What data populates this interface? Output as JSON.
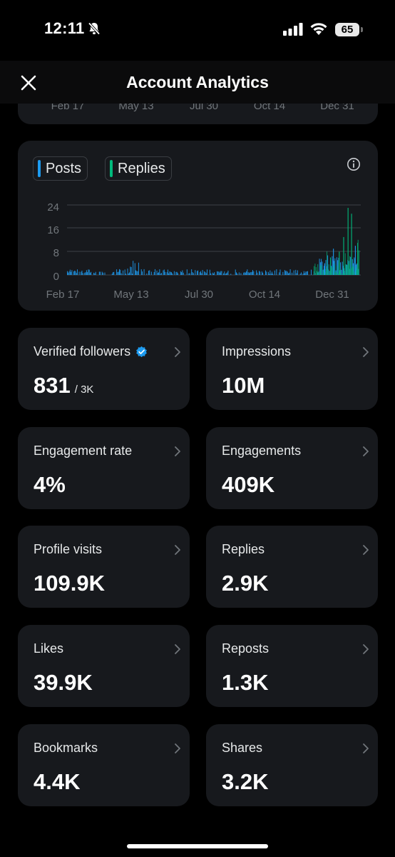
{
  "status_bar": {
    "time": "12:11",
    "battery": "65",
    "icons": [
      "bell-slash-icon",
      "signal-icon",
      "wifi-icon",
      "battery-icon"
    ]
  },
  "header": {
    "title": "Account Analytics",
    "close_icon": "close-icon"
  },
  "top_chart": {
    "x_labels": [
      "Feb 17",
      "May 13",
      "Jul 30",
      "Oct 14",
      "Dec 31"
    ]
  },
  "chart": {
    "legend": [
      {
        "label": "Posts",
        "color": "#1d9bf0"
      },
      {
        "label": "Replies",
        "color": "#00ba7c"
      }
    ],
    "info_icon": "info-icon"
  },
  "chart_data": {
    "type": "bar",
    "series": [
      {
        "name": "Posts",
        "color": "#1d9bf0"
      },
      {
        "name": "Replies",
        "color": "#00ba7c"
      }
    ],
    "ylim": [
      0,
      24
    ],
    "y_ticks": [
      "24",
      "16",
      "8",
      "0"
    ],
    "x_ticks": [
      "Feb 17",
      "May 13",
      "Jul 30",
      "Oct 14",
      "Dec 31"
    ],
    "grid": true,
    "legend_position": "top-left"
  },
  "stats": [
    {
      "label": "Verified followers",
      "value": "831",
      "sub": "/ 3K",
      "verified": true
    },
    {
      "label": "Impressions",
      "value": "10M"
    },
    {
      "label": "Engagement rate",
      "value": "4%"
    },
    {
      "label": "Engagements",
      "value": "409K"
    },
    {
      "label": "Profile visits",
      "value": "109.9K"
    },
    {
      "label": "Replies",
      "value": "2.9K"
    },
    {
      "label": "Likes",
      "value": "39.9K"
    },
    {
      "label": "Reposts",
      "value": "1.3K"
    },
    {
      "label": "Bookmarks",
      "value": "4.4K"
    },
    {
      "label": "Shares",
      "value": "3.2K"
    }
  ]
}
